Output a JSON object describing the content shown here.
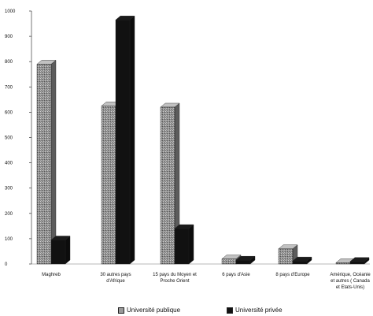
{
  "chart_data": {
    "type": "bar",
    "categories": [
      [
        "Maghreb"
      ],
      [
        "30 autres pays",
        "d'Afrique"
      ],
      [
        "15 pays du Moyen et",
        "Proche Orient"
      ],
      [
        "6 pays d'Asie"
      ],
      [
        "8 pays d'Europe"
      ],
      [
        "Amérique, Océanie",
        "et autres ( Canada",
        "et Etats-Unis)"
      ]
    ],
    "series": [
      {
        "name": "Université publique",
        "color": "#9a9a9a",
        "values": [
          790,
          625,
          620,
          20,
          60,
          5
        ]
      },
      {
        "name": "Université privée",
        "color": "#111111",
        "values": [
          95,
          965,
          140,
          15,
          12,
          10
        ]
      }
    ],
    "ylim": [
      0,
      1000
    ],
    "yticks": [
      "0",
      "100",
      "200",
      "300",
      "400",
      "500",
      "600",
      "700",
      "800",
      "900",
      "1000"
    ],
    "legend_position": "bottom",
    "style": "3d"
  }
}
